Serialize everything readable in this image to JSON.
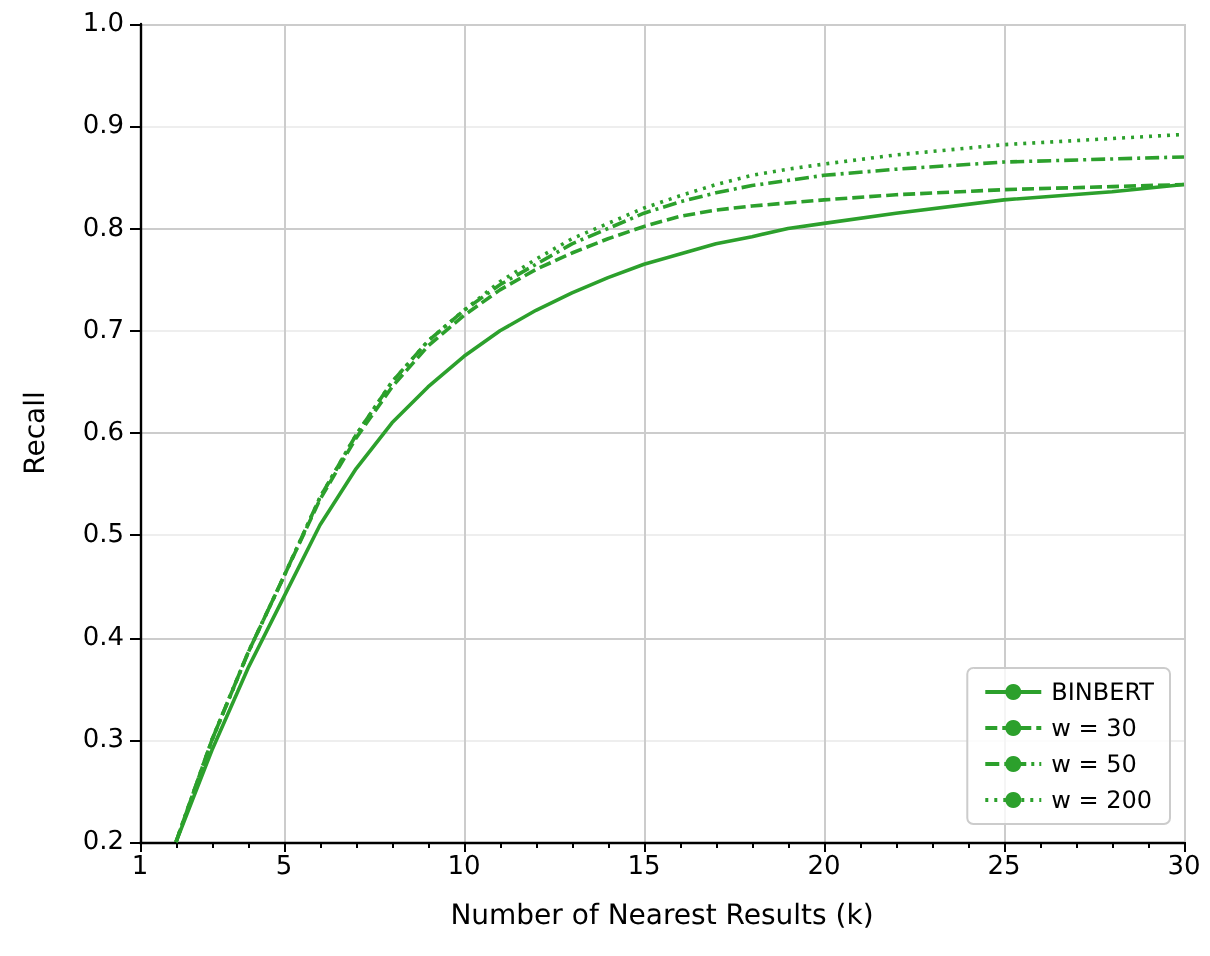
{
  "chart_data": {
    "type": "line",
    "xlabel": "Number of Nearest Results (k)",
    "ylabel": "Recall",
    "xlim": [
      1,
      30
    ],
    "xticks": [
      1,
      5,
      10,
      15,
      20,
      25,
      30
    ],
    "ylim": [
      0.2,
      1.0
    ],
    "yticks": [
      0.2,
      0.3,
      0.4,
      0.5,
      0.6,
      0.7,
      0.8,
      0.9,
      {
        "value": 1,
        "label": "1.0"
      }
    ],
    "grid": true,
    "legend": "bottom right",
    "marker": "none",
    "x": [
      2,
      3,
      4,
      5,
      6,
      7,
      8,
      9,
      10,
      11,
      12,
      13,
      14,
      15,
      16,
      17,
      18,
      19,
      20,
      22,
      25,
      28,
      30
    ],
    "series": [
      {
        "name": "BINBERT",
        "color": "#2ca02c",
        "line_style": "solid",
        "values": [
          0.2,
          0.29,
          0.37,
          0.44,
          0.51,
          0.565,
          0.61,
          0.645,
          0.675,
          0.7,
          0.72,
          0.737,
          0.752,
          0.765,
          0.775,
          0.785,
          0.792,
          0.8,
          0.805,
          0.815,
          0.828,
          0.836,
          0.843
        ]
      },
      {
        "name": "w = 30",
        "color": "#2ca02c",
        "line_style": "dashed",
        "values": [
          0.2,
          0.3,
          0.385,
          0.46,
          0.535,
          0.595,
          0.645,
          0.685,
          0.715,
          0.74,
          0.76,
          0.776,
          0.79,
          0.802,
          0.812,
          0.818,
          0.822,
          0.825,
          0.828,
          0.833,
          0.838,
          0.841,
          0.843
        ]
      },
      {
        "name": "w = 50",
        "color": "#2ca02c",
        "line_style": "dashdot",
        "values": [
          0.2,
          0.3,
          0.385,
          0.46,
          0.537,
          0.598,
          0.65,
          0.69,
          0.72,
          0.745,
          0.765,
          0.785,
          0.8,
          0.815,
          0.826,
          0.835,
          0.842,
          0.847,
          0.852,
          0.858,
          0.865,
          0.868,
          0.87
        ]
      },
      {
        "name": "w = 200",
        "color": "#2ca02c",
        "line_style": "dotted",
        "values": [
          0.2,
          0.3,
          0.385,
          0.46,
          0.537,
          0.598,
          0.65,
          0.69,
          0.72,
          0.748,
          0.77,
          0.79,
          0.805,
          0.82,
          0.832,
          0.843,
          0.852,
          0.858,
          0.863,
          0.872,
          0.882,
          0.888,
          0.892
        ]
      }
    ]
  }
}
